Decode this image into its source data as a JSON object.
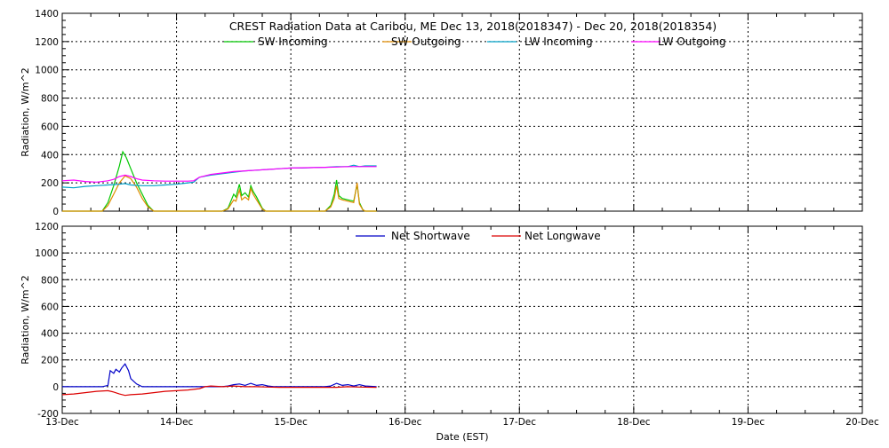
{
  "chart_data": [
    {
      "type": "line",
      "title": "CREST Radiation Data at Caribou, ME   Dec 13, 2018(2018347) - Dec 20, 2018(2018354)",
      "ylabel": "Radiation, W/m^2",
      "xlabel": "",
      "ylim": [
        0,
        1400
      ],
      "yticks": [
        "0",
        "200",
        "400",
        "600",
        "800",
        "1000",
        "1200",
        "1400"
      ],
      "xlim": [
        0,
        7
      ],
      "xtick_labels": [
        "13-Dec",
        "14-Dec",
        "15-Dec",
        "16-Dec",
        "17-Dec",
        "18-Dec",
        "19-Dec",
        "20-Dec"
      ],
      "grid": true,
      "legend_placement": "top",
      "series": [
        {
          "name": "SW Incoming",
          "color": "#00c800",
          "points": [
            [
              0,
              0
            ],
            [
              0.35,
              0
            ],
            [
              0.4,
              60
            ],
            [
              0.45,
              180
            ],
            [
              0.5,
              320
            ],
            [
              0.53,
              420
            ],
            [
              0.56,
              380
            ],
            [
              0.6,
              300
            ],
            [
              0.65,
              200
            ],
            [
              0.7,
              120
            ],
            [
              0.75,
              40
            ],
            [
              0.8,
              0
            ],
            [
              1.4,
              0
            ],
            [
              1.45,
              20
            ],
            [
              1.48,
              80
            ],
            [
              1.5,
              120
            ],
            [
              1.52,
              100
            ],
            [
              1.55,
              190
            ],
            [
              1.57,
              110
            ],
            [
              1.6,
              130
            ],
            [
              1.63,
              100
            ],
            [
              1.65,
              180
            ],
            [
              1.67,
              140
            ],
            [
              1.7,
              100
            ],
            [
              1.75,
              20
            ],
            [
              1.78,
              0
            ],
            [
              2.3,
              0
            ],
            [
              2.35,
              40
            ],
            [
              2.38,
              120
            ],
            [
              2.4,
              220
            ],
            [
              2.42,
              110
            ],
            [
              2.45,
              90
            ],
            [
              2.5,
              80
            ],
            [
              2.55,
              70
            ],
            [
              2.58,
              190
            ],
            [
              2.6,
              60
            ],
            [
              2.63,
              10
            ],
            [
              2.65,
              0
            ],
            [
              2.75,
              0
            ]
          ]
        },
        {
          "name": "SW Outgoing",
          "color": "#e08c00",
          "points": [
            [
              0,
              0
            ],
            [
              0.35,
              0
            ],
            [
              0.4,
              40
            ],
            [
              0.45,
              120
            ],
            [
              0.5,
              200
            ],
            [
              0.55,
              250
            ],
            [
              0.6,
              230
            ],
            [
              0.65,
              170
            ],
            [
              0.7,
              90
            ],
            [
              0.75,
              30
            ],
            [
              0.8,
              0
            ],
            [
              1.4,
              0
            ],
            [
              1.45,
              15
            ],
            [
              1.5,
              80
            ],
            [
              1.52,
              70
            ],
            [
              1.55,
              150
            ],
            [
              1.57,
              80
            ],
            [
              1.6,
              100
            ],
            [
              1.63,
              80
            ],
            [
              1.65,
              160
            ],
            [
              1.67,
              120
            ],
            [
              1.7,
              80
            ],
            [
              1.75,
              15
            ],
            [
              1.78,
              0
            ],
            [
              2.3,
              0
            ],
            [
              2.35,
              30
            ],
            [
              2.38,
              90
            ],
            [
              2.4,
              180
            ],
            [
              2.42,
              90
            ],
            [
              2.45,
              80
            ],
            [
              2.5,
              70
            ],
            [
              2.55,
              60
            ],
            [
              2.58,
              200
            ],
            [
              2.6,
              50
            ],
            [
              2.63,
              10
            ],
            [
              2.65,
              0
            ],
            [
              2.75,
              0
            ]
          ]
        },
        {
          "name": "LW Incoming",
          "color": "#00a0c8",
          "points": [
            [
              0,
              170
            ],
            [
              0.1,
              165
            ],
            [
              0.2,
              175
            ],
            [
              0.3,
              180
            ],
            [
              0.4,
              185
            ],
            [
              0.5,
              190
            ],
            [
              0.55,
              195
            ],
            [
              0.6,
              185
            ],
            [
              0.7,
              180
            ],
            [
              0.8,
              180
            ],
            [
              0.9,
              185
            ],
            [
              1.0,
              190
            ],
            [
              1.1,
              200
            ],
            [
              1.15,
              205
            ],
            [
              1.2,
              240
            ],
            [
              1.3,
              255
            ],
            [
              1.4,
              265
            ],
            [
              1.5,
              275
            ],
            [
              1.6,
              285
            ],
            [
              1.7,
              290
            ],
            [
              1.8,
              295
            ],
            [
              1.9,
              300
            ],
            [
              2.0,
              305
            ],
            [
              2.1,
              305
            ],
            [
              2.2,
              308
            ],
            [
              2.3,
              310
            ],
            [
              2.4,
              315
            ],
            [
              2.5,
              315
            ],
            [
              2.55,
              325
            ],
            [
              2.6,
              315
            ],
            [
              2.65,
              320
            ],
            [
              2.7,
              320
            ],
            [
              2.75,
              320
            ]
          ]
        },
        {
          "name": "LW Outgoing",
          "color": "#ff00ff",
          "points": [
            [
              0,
              215
            ],
            [
              0.1,
              220
            ],
            [
              0.2,
              210
            ],
            [
              0.3,
              205
            ],
            [
              0.4,
              215
            ],
            [
              0.45,
              225
            ],
            [
              0.5,
              245
            ],
            [
              0.55,
              255
            ],
            [
              0.6,
              245
            ],
            [
              0.65,
              230
            ],
            [
              0.7,
              220
            ],
            [
              0.8,
              215
            ],
            [
              0.9,
              212
            ],
            [
              1.0,
              212
            ],
            [
              1.1,
              212
            ],
            [
              1.15,
              215
            ],
            [
              1.2,
              240
            ],
            [
              1.3,
              260
            ],
            [
              1.4,
              270
            ],
            [
              1.5,
              280
            ],
            [
              1.6,
              285
            ],
            [
              1.7,
              290
            ],
            [
              1.8,
              295
            ],
            [
              1.9,
              300
            ],
            [
              2.0,
              305
            ],
            [
              2.1,
              307
            ],
            [
              2.2,
              308
            ],
            [
              2.3,
              310
            ],
            [
              2.4,
              312
            ],
            [
              2.5,
              315
            ],
            [
              2.6,
              315
            ],
            [
              2.7,
              315
            ],
            [
              2.75,
              315
            ]
          ]
        }
      ]
    },
    {
      "type": "line",
      "title": "",
      "ylabel": "Radiation, W/m^2",
      "xlabel": "Date (EST)",
      "ylim": [
        -200,
        1200
      ],
      "yticks": [
        "-200",
        "0",
        "200",
        "400",
        "600",
        "800",
        "1000",
        "1200"
      ],
      "xlim": [
        0,
        7
      ],
      "xtick_labels": [
        "13-Dec",
        "14-Dec",
        "15-Dec",
        "16-Dec",
        "17-Dec",
        "18-Dec",
        "19-Dec",
        "20-Dec"
      ],
      "grid": true,
      "legend_placement": "top",
      "series": [
        {
          "name": "Net Shortwave",
          "color": "#0000c8",
          "points": [
            [
              0,
              0
            ],
            [
              0.35,
              0
            ],
            [
              0.4,
              10
            ],
            [
              0.42,
              120
            ],
            [
              0.45,
              100
            ],
            [
              0.47,
              130
            ],
            [
              0.5,
              110
            ],
            [
              0.52,
              140
            ],
            [
              0.55,
              170
            ],
            [
              0.58,
              120
            ],
            [
              0.6,
              60
            ],
            [
              0.65,
              20
            ],
            [
              0.7,
              0
            ],
            [
              1.4,
              0
            ],
            [
              1.45,
              5
            ],
            [
              1.5,
              15
            ],
            [
              1.55,
              20
            ],
            [
              1.6,
              10
            ],
            [
              1.65,
              25
            ],
            [
              1.7,
              10
            ],
            [
              1.75,
              15
            ],
            [
              1.8,
              5
            ],
            [
              1.85,
              0
            ],
            [
              2.3,
              0
            ],
            [
              2.35,
              5
            ],
            [
              2.4,
              25
            ],
            [
              2.45,
              10
            ],
            [
              2.5,
              15
            ],
            [
              2.55,
              5
            ],
            [
              2.6,
              15
            ],
            [
              2.65,
              5
            ],
            [
              2.75,
              0
            ]
          ]
        },
        {
          "name": "Net Longwave",
          "color": "#dc0000",
          "points": [
            [
              0,
              -60
            ],
            [
              0.1,
              -55
            ],
            [
              0.2,
              -45
            ],
            [
              0.3,
              -35
            ],
            [
              0.4,
              -30
            ],
            [
              0.45,
              -40
            ],
            [
              0.5,
              -55
            ],
            [
              0.55,
              -65
            ],
            [
              0.6,
              -60
            ],
            [
              0.7,
              -55
            ],
            [
              0.8,
              -45
            ],
            [
              0.9,
              -35
            ],
            [
              1.0,
              -30
            ],
            [
              1.1,
              -25
            ],
            [
              1.2,
              -15
            ],
            [
              1.25,
              0
            ],
            [
              1.3,
              5
            ],
            [
              1.4,
              0
            ],
            [
              1.5,
              5
            ],
            [
              1.6,
              0
            ],
            [
              1.7,
              0
            ],
            [
              1.8,
              -3
            ],
            [
              1.9,
              -5
            ],
            [
              2.0,
              -5
            ],
            [
              2.2,
              -5
            ],
            [
              2.4,
              -5
            ],
            [
              2.5,
              0
            ],
            [
              2.6,
              -3
            ],
            [
              2.75,
              -5
            ]
          ]
        }
      ]
    }
  ]
}
